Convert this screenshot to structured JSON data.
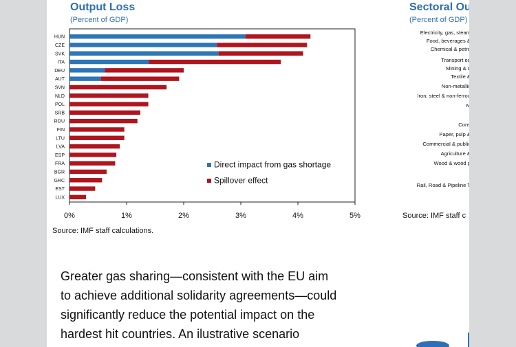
{
  "left_panel": {
    "title": "Output Loss",
    "subtitle": "(Percent of GDP)",
    "source": "Source: IMF staff calculations."
  },
  "right_panel": {
    "title": "Sectoral Ou",
    "subtitle": "(Percent of GDP)",
    "source": "Source: IMF staff c",
    "categories": [
      "Electricity, gas, steam",
      "Food, beverages &",
      "Chemical & petro",
      "Transport eq",
      "Mining & q",
      "Textile &",
      "Non-metallic",
      "Iron, steel & non-ferrou",
      "M",
      "",
      "Cons",
      "Paper, pulp &",
      "Commercial & public",
      "Agriculture &",
      "Wood & wood p",
      "",
      "Rail, Road & Pipeline T"
    ]
  },
  "body_text": [
    "Greater gas sharing—consistent with the EU aim",
    "to achieve additional solidarity agreements—could",
    "significantly reduce the potential impact on the",
    "hardest hit countries.  An ilustrative scenario"
  ],
  "chart_data": {
    "type": "bar",
    "orientation": "horizontal",
    "stacked": true,
    "categories": [
      "HUN",
      "CZE",
      "SVK",
      "ITA",
      "DEU",
      "AUT",
      "SVN",
      "NLD",
      "POL",
      "SRB",
      "ROU",
      "FIN",
      "LTU",
      "LVA",
      "ESP",
      "FRA",
      "BGR",
      "GRC",
      "EST",
      "LUX"
    ],
    "series": [
      {
        "name": "Direct impact from gas shortage",
        "color": "#2e75b6",
        "values": [
          3.08,
          2.58,
          2.61,
          1.39,
          0.62,
          0.55,
          0,
          0,
          0,
          0,
          0,
          0,
          0,
          0,
          0,
          0,
          0,
          0,
          0,
          0
        ]
      },
      {
        "name": "Spillover effect",
        "color": "#b0141c",
        "values": [
          1.14,
          1.58,
          1.48,
          2.31,
          1.38,
          1.37,
          1.7,
          1.38,
          1.38,
          1.24,
          1.19,
          0.96,
          0.96,
          0.88,
          0.82,
          0.8,
          0.65,
          0.57,
          0.45,
          0.29
        ]
      }
    ],
    "xlim": [
      0,
      5
    ],
    "xticks": [
      "0%",
      "1%",
      "2%",
      "3%",
      "4%",
      "5%"
    ],
    "grid": false,
    "legend_position": "bottom-right inside"
  }
}
